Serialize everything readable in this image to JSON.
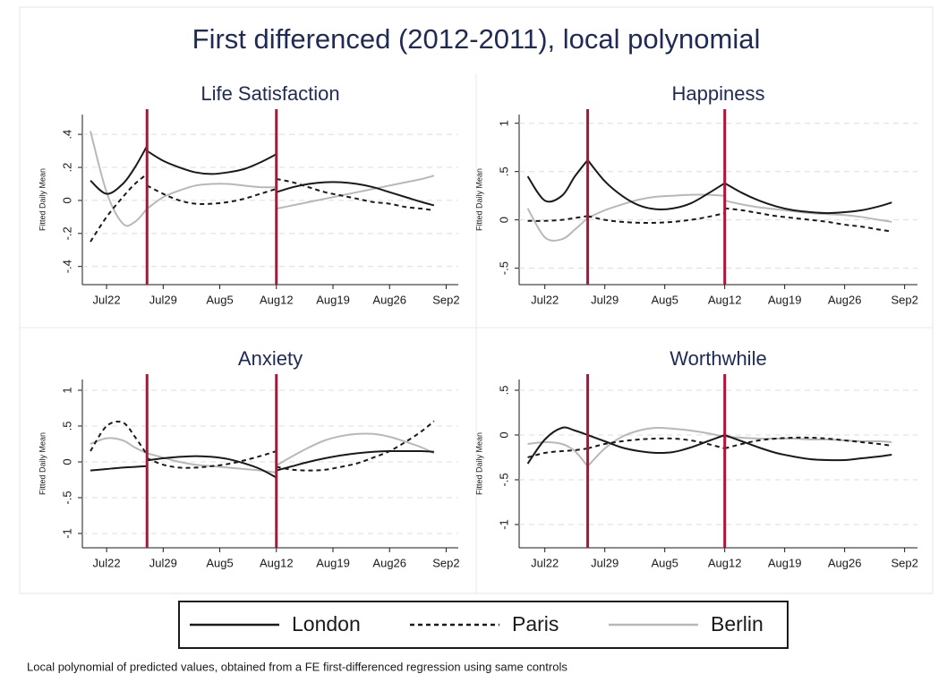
{
  "title": "First differenced (2012-2011), local polynomial",
  "note": "Local polynomial of predicted values, obtained from a FE first-differenced regression using same controls",
  "chart_data": [
    {
      "type": "line",
      "title": "Life Satisfaction",
      "ylabel": "Fitted Daily Mean",
      "x": [
        20,
        22,
        24,
        25.5,
        27,
        27,
        27,
        29,
        31,
        33,
        35,
        37,
        39,
        41,
        43,
        43,
        43,
        45,
        47,
        49,
        51,
        53,
        55,
        57,
        59,
        61,
        62.5
      ],
      "xlim": [
        19,
        65.5
      ],
      "xticks": [
        {
          "value": 22,
          "label": "Jul22"
        },
        {
          "value": 29,
          "label": "Jul29"
        },
        {
          "value": 36,
          "label": "Aug5"
        },
        {
          "value": 43,
          "label": "Aug12"
        },
        {
          "value": 50,
          "label": "Aug19"
        },
        {
          "value": 57,
          "label": "Aug26"
        },
        {
          "value": 64,
          "label": "Sep2"
        }
      ],
      "ylim": [
        -0.51,
        0.52
      ],
      "yticks": [
        {
          "value": -0.4,
          "label": "-.4"
        },
        {
          "value": -0.2,
          "label": "-.2"
        },
        0,
        {
          "value": 0.2,
          "label": ".2"
        },
        {
          "value": 0.4,
          "label": ".4"
        }
      ],
      "grid": true,
      "vlines": [
        27,
        43
      ],
      "vline_color": "#b0123a",
      "series": [
        {
          "name": "London",
          "color": "#1a1a1a",
          "dash": "solid",
          "values": [
            0.12,
            0.04,
            0.1,
            0.2,
            0.33,
            null,
            0.3,
            0.24,
            0.2,
            0.17,
            0.16,
            0.17,
            0.19,
            0.23,
            0.28,
            null,
            0.05,
            0.08,
            0.1,
            0.11,
            0.11,
            0.1,
            0.08,
            0.05,
            0.02,
            -0.01,
            -0.03
          ]
        },
        {
          "name": "Paris",
          "color": "#1a1a1a",
          "dash": "dashed",
          "values": [
            -0.25,
            -0.1,
            0.02,
            0.1,
            0.16,
            null,
            0.09,
            0.04,
            0.0,
            -0.02,
            -0.02,
            -0.01,
            0.01,
            0.04,
            0.07,
            null,
            0.13,
            0.11,
            0.08,
            0.05,
            0.03,
            0.01,
            -0.01,
            -0.02,
            -0.04,
            -0.05,
            -0.06
          ]
        },
        {
          "name": "Berlin",
          "color": "#b8b8b8",
          "dash": "solid",
          "values": [
            0.42,
            0.05,
            -0.14,
            -0.13,
            -0.05,
            null,
            -0.05,
            0.02,
            0.06,
            0.09,
            0.1,
            0.1,
            0.09,
            0.08,
            0.08,
            null,
            -0.05,
            -0.03,
            -0.01,
            0.01,
            0.03,
            0.05,
            0.07,
            0.09,
            0.11,
            0.13,
            0.15
          ]
        }
      ]
    },
    {
      "type": "line",
      "title": "Happiness",
      "ylabel": "Fitted Daily Mean",
      "x": [
        20,
        22,
        24,
        25.5,
        27,
        27,
        27,
        29,
        31,
        33,
        35,
        37,
        39,
        41,
        43,
        43,
        43,
        45,
        47,
        49,
        51,
        53,
        55,
        57,
        59,
        61,
        62.5
      ],
      "xlim": [
        19,
        65.5
      ],
      "xticks": [
        {
          "value": 22,
          "label": "Jul22"
        },
        {
          "value": 29,
          "label": "Jul29"
        },
        {
          "value": 36,
          "label": "Aug5"
        },
        {
          "value": 43,
          "label": "Aug12"
        },
        {
          "value": 50,
          "label": "Aug19"
        },
        {
          "value": 57,
          "label": "Aug26"
        },
        {
          "value": 64,
          "label": "Sep2"
        }
      ],
      "ylim": [
        -0.67,
        1.09
      ],
      "yticks": [
        {
          "value": -0.5,
          "label": "-.5"
        },
        0,
        {
          "value": 0.5,
          "label": ".5"
        },
        1
      ],
      "grid": true,
      "vlines": [
        27,
        43
      ],
      "vline_color": "#b0123a",
      "series": [
        {
          "name": "London",
          "color": "#1a1a1a",
          "dash": "solid",
          "values": [
            0.45,
            0.2,
            0.25,
            0.45,
            0.62,
            null,
            0.62,
            0.4,
            0.25,
            0.15,
            0.11,
            0.12,
            0.17,
            0.27,
            0.38,
            null,
            0.38,
            0.28,
            0.2,
            0.14,
            0.1,
            0.08,
            0.07,
            0.08,
            0.1,
            0.14,
            0.18
          ]
        },
        {
          "name": "Paris",
          "color": "#1a1a1a",
          "dash": "dashed",
          "values": [
            -0.01,
            -0.01,
            0.0,
            0.02,
            0.04,
            null,
            0.04,
            0.0,
            -0.02,
            -0.03,
            -0.03,
            -0.02,
            0.0,
            0.03,
            0.07,
            null,
            0.12,
            0.1,
            0.07,
            0.04,
            0.02,
            0.0,
            -0.02,
            -0.05,
            -0.07,
            -0.1,
            -0.12
          ]
        },
        {
          "name": "Berlin",
          "color": "#b8b8b8",
          "dash": "solid",
          "values": [
            0.12,
            -0.18,
            -0.2,
            -0.1,
            0.02,
            null,
            0.02,
            0.1,
            0.16,
            0.21,
            0.24,
            0.25,
            0.26,
            0.26,
            0.25,
            null,
            0.2,
            0.16,
            0.13,
            0.11,
            0.09,
            0.07,
            0.06,
            0.05,
            0.03,
            0.0,
            -0.02
          ]
        }
      ]
    },
    {
      "type": "line",
      "title": "Anxiety",
      "ylabel": "Fitted Daily Mean",
      "x": [
        20,
        22,
        24,
        25.5,
        27,
        27,
        27,
        29,
        31,
        33,
        35,
        37,
        39,
        41,
        43,
        43,
        43,
        45,
        47,
        49,
        51,
        53,
        55,
        57,
        59,
        61,
        62.5
      ],
      "xlim": [
        19,
        65.5
      ],
      "xticks": [
        {
          "value": 22,
          "label": "Jul22"
        },
        {
          "value": 29,
          "label": "Jul29"
        },
        {
          "value": 36,
          "label": "Aug5"
        },
        {
          "value": 43,
          "label": "Aug12"
        },
        {
          "value": 50,
          "label": "Aug19"
        },
        {
          "value": 57,
          "label": "Aug26"
        },
        {
          "value": 64,
          "label": "Sep2"
        }
      ],
      "ylim": [
        -1.2,
        1.15
      ],
      "yticks": [
        -1,
        {
          "value": -0.5,
          "label": "-.5"
        },
        0,
        {
          "value": 0.5,
          "label": ".5"
        },
        1
      ],
      "grid": true,
      "vlines": [
        27,
        43
      ],
      "vline_color": "#b0123a",
      "series": [
        {
          "name": "London",
          "color": "#1a1a1a",
          "dash": "solid",
          "values": [
            -0.12,
            -0.1,
            -0.08,
            -0.07,
            -0.06,
            null,
            0.02,
            0.05,
            0.07,
            0.08,
            0.07,
            0.04,
            -0.02,
            -0.1,
            -0.22,
            null,
            -0.12,
            -0.06,
            0.0,
            0.05,
            0.09,
            0.12,
            0.14,
            0.15,
            0.15,
            0.15,
            0.14
          ]
        },
        {
          "name": "Paris",
          "color": "#1a1a1a",
          "dash": "dashed",
          "values": [
            0.15,
            0.5,
            0.55,
            0.35,
            0.1,
            null,
            0.05,
            -0.04,
            -0.08,
            -0.08,
            -0.06,
            -0.03,
            0.02,
            0.08,
            0.15,
            null,
            -0.07,
            -0.11,
            -0.12,
            -0.11,
            -0.07,
            -0.02,
            0.06,
            0.15,
            0.28,
            0.43,
            0.57
          ]
        },
        {
          "name": "Berlin",
          "color": "#b8b8b8",
          "dash": "solid",
          "values": [
            0.25,
            0.33,
            0.3,
            0.2,
            0.12,
            null,
            0.12,
            0.06,
            0.0,
            -0.04,
            -0.06,
            -0.08,
            -0.1,
            -0.12,
            -0.15,
            null,
            -0.05,
            0.08,
            0.2,
            0.3,
            0.36,
            0.39,
            0.39,
            0.35,
            0.28,
            0.2,
            0.12
          ]
        }
      ]
    },
    {
      "type": "line",
      "title": "Worthwhile",
      "ylabel": "Fitted Daily Mean",
      "x": [
        20,
        22,
        24,
        25.5,
        27,
        27,
        27,
        29,
        31,
        33,
        35,
        37,
        39,
        41,
        43,
        43,
        43,
        45,
        47,
        49,
        51,
        53,
        55,
        57,
        59,
        61,
        62.5
      ],
      "xlim": [
        19,
        65.5
      ],
      "xticks": [
        {
          "value": 22,
          "label": "Jul22"
        },
        {
          "value": 29,
          "label": "Jul29"
        },
        {
          "value": 36,
          "label": "Aug5"
        },
        {
          "value": 43,
          "label": "Aug12"
        },
        {
          "value": 50,
          "label": "Aug19"
        },
        {
          "value": 57,
          "label": "Aug26"
        },
        {
          "value": 64,
          "label": "Sep2"
        }
      ],
      "ylim": [
        -1.26,
        0.62
      ],
      "yticks": [
        -1,
        {
          "value": -0.5,
          "label": "-.5"
        },
        0,
        {
          "value": 0.5,
          "label": ".5"
        }
      ],
      "grid": true,
      "vlines": [
        27,
        43
      ],
      "vline_color": "#b0123a",
      "series": [
        {
          "name": "London",
          "color": "#1a1a1a",
          "dash": "solid",
          "values": [
            -0.32,
            -0.05,
            0.08,
            0.05,
            0.0,
            null,
            0.0,
            -0.07,
            -0.14,
            -0.18,
            -0.2,
            -0.19,
            -0.14,
            -0.07,
            0.0,
            null,
            0.0,
            -0.07,
            -0.14,
            -0.2,
            -0.24,
            -0.27,
            -0.28,
            -0.28,
            -0.26,
            -0.24,
            -0.22
          ]
        },
        {
          "name": "Paris",
          "color": "#1a1a1a",
          "dash": "dashed",
          "values": [
            -0.25,
            -0.2,
            -0.18,
            -0.17,
            -0.15,
            null,
            -0.15,
            -0.1,
            -0.07,
            -0.05,
            -0.04,
            -0.04,
            -0.06,
            -0.1,
            -0.15,
            null,
            -0.15,
            -0.1,
            -0.06,
            -0.04,
            -0.03,
            -0.03,
            -0.04,
            -0.06,
            -0.08,
            -0.1,
            -0.12
          ]
        },
        {
          "name": "Berlin",
          "color": "#b8b8b8",
          "dash": "solid",
          "values": [
            -0.1,
            -0.08,
            -0.1,
            -0.18,
            -0.35,
            null,
            -0.35,
            -0.15,
            -0.02,
            0.05,
            0.08,
            0.07,
            0.05,
            0.02,
            -0.02,
            null,
            -0.02,
            -0.03,
            -0.04,
            -0.04,
            -0.04,
            -0.05,
            -0.05,
            -0.06,
            -0.07,
            -0.07,
            -0.08
          ]
        }
      ]
    }
  ]
}
